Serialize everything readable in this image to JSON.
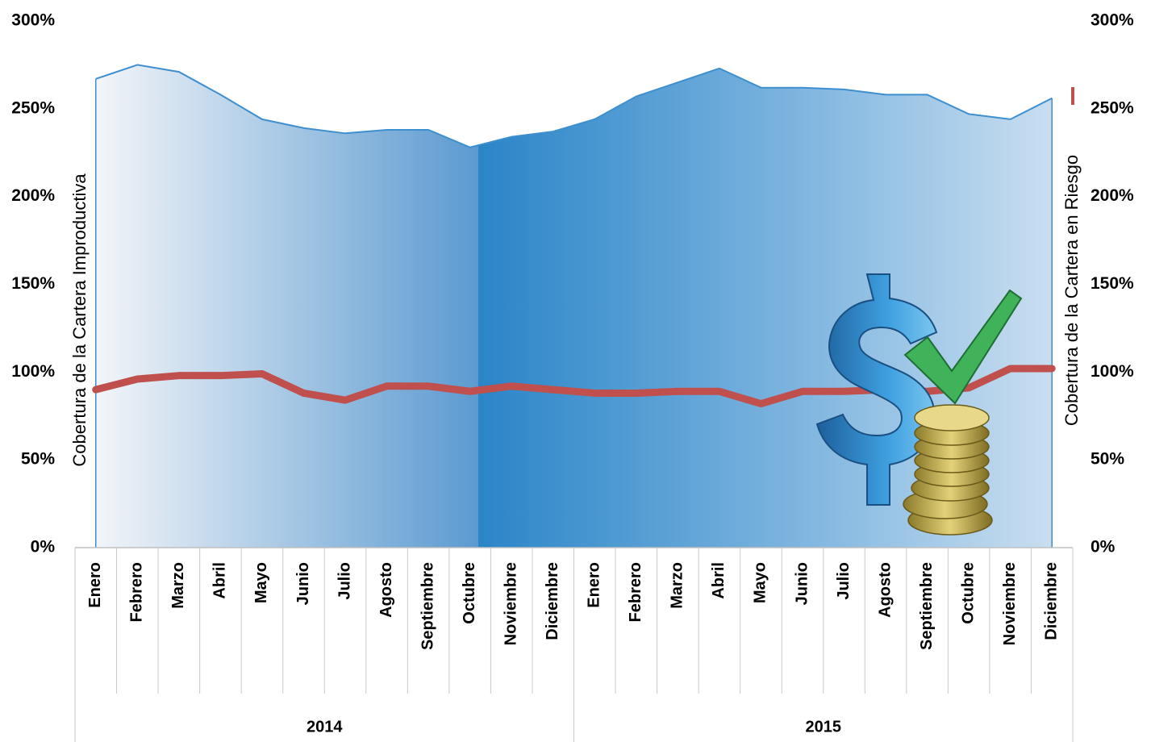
{
  "chart_data": {
    "type": "area_line",
    "category_groups": [
      {
        "label": "2014",
        "categories": [
          "Enero",
          "Febrero",
          "Marzo",
          "Abril",
          "Mayo",
          "Junio",
          "Julio",
          "Agosto",
          "Septiembre",
          "Octubre",
          "Noviembre",
          "Diciembre"
        ]
      },
      {
        "label": "2015",
        "categories": [
          "Enero",
          "Febrero",
          "Marzo",
          "Abril",
          "Mayo",
          "Junio",
          "Julio",
          "Agosto",
          "Septiembre",
          "Octubre",
          "Noviembre",
          "Diciembre"
        ]
      }
    ],
    "series": [
      {
        "name": "Cobertura de la Cartera Improductiva",
        "type": "area",
        "color": "#2a85c8",
        "values": [
          267,
          275,
          271,
          258,
          244,
          239,
          236,
          238,
          238,
          228,
          234,
          237,
          244,
          257,
          265,
          273,
          262,
          262,
          261,
          258,
          258,
          247,
          244,
          256
        ]
      },
      {
        "name": "Cobertura de la Cartera en Riesgo",
        "type": "line",
        "axis": "y2",
        "color": "#c0504d",
        "values": [
          90,
          96,
          98,
          98,
          99,
          88,
          84,
          92,
          92,
          89,
          92,
          90,
          88,
          88,
          89,
          89,
          82,
          89,
          89,
          90,
          89,
          91,
          102,
          102
        ]
      }
    ],
    "ylim": [
      0,
      300
    ],
    "yticks": [
      {
        "value": 0,
        "label": "0%"
      },
      {
        "value": 50,
        "label": "50%"
      },
      {
        "value": 100,
        "label": "100%"
      },
      {
        "value": 150,
        "label": "150%"
      },
      {
        "value": 200,
        "label": "200%"
      },
      {
        "value": 250,
        "label": "250%"
      },
      {
        "value": 300,
        "label": "300%"
      }
    ],
    "y2lim": [
      0,
      300
    ],
    "y2ticks": [
      {
        "value": 0,
        "label": "0%"
      },
      {
        "value": 50,
        "label": "50%"
      },
      {
        "value": 100,
        "label": "100%"
      },
      {
        "value": 150,
        "label": "150%"
      },
      {
        "value": 200,
        "label": "200%"
      },
      {
        "value": 250,
        "label": "250%"
      },
      {
        "value": 300,
        "label": "300%"
      }
    ],
    "grid": false
  }
}
